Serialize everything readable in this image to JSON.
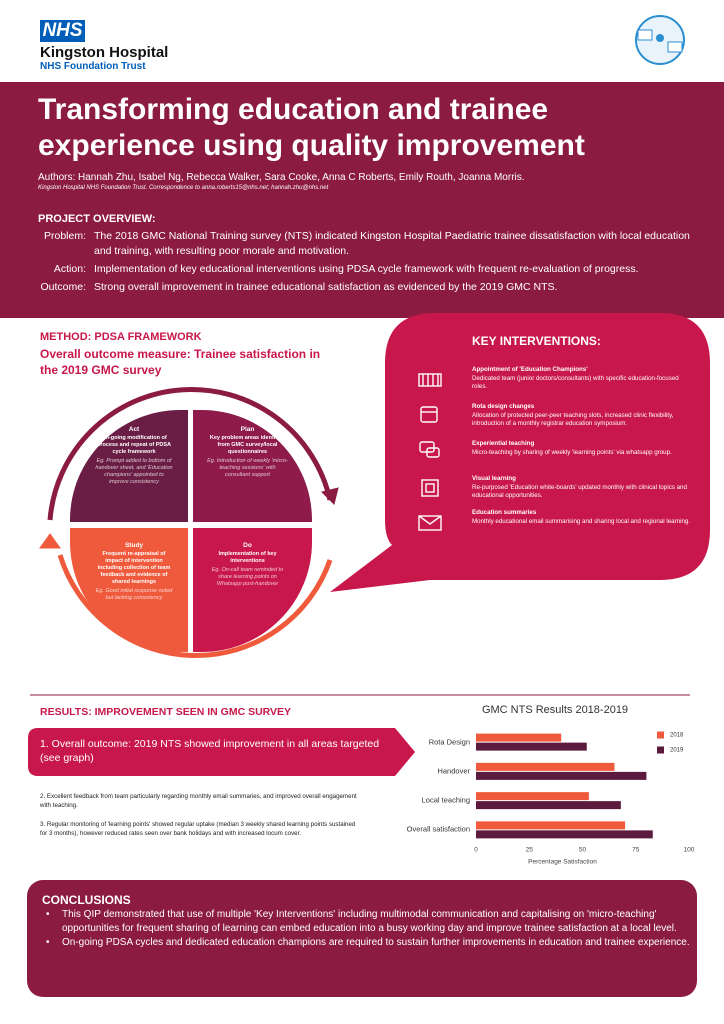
{
  "header": {
    "logo": "NHS",
    "org": "Kingston Hospital",
    "trust": "NHS Foundation Trust"
  },
  "title": "Transforming education and trainee experience using quality improvement",
  "authors": "Authors: Hannah Zhu, Isabel Ng, Rebecca Walker, Sara Cooke, Anna C Roberts, Emily Routh, Joanna Morris.",
  "affiliation": "Kingston Hospital NHS Foundation Trust. Correspondence to anna.roberts15@nhs.net; hannah.zhu@nhs.net",
  "overview": {
    "heading": "PROJECT OVERVIEW:",
    "items": [
      {
        "label": "Problem:",
        "text": "The 2018 GMC National Training survey (NTS) indicated Kingston Hospital Paediatric trainee dissatisfaction with local education and training, with resulting poor morale and motivation."
      },
      {
        "label": "Action:",
        "text": "Implementation of key educational interventions using PDSA cycle framework with frequent re-evaluation of progress."
      },
      {
        "label": "Outcome:",
        "text": "Strong overall improvement in trainee educational satisfaction as evidenced by the 2019 GMC NTS."
      }
    ]
  },
  "method": {
    "heading": "METHOD: PDSA FRAMEWORK",
    "subheading": "Overall outcome measure: Trainee satisfaction in the 2019 GMC survey",
    "quadrants": [
      {
        "title": "Act",
        "text": "On-going modification of process and repeat of PDSA cycle framework",
        "example": "Eg. Prompt added to bottom of handover sheet, and 'Education champions' appointed to improve consistency"
      },
      {
        "title": "Plan",
        "text": "Key problem areas identified from GMC survey/local questionnaires",
        "example": "Eg. Introduction of weekly 'micro-teaching sessions' with consultant support"
      },
      {
        "title": "Study",
        "text": "Frequent re-appraisal of impact of intervention including collection of team feedback and evidence of shared learnings",
        "example": "Eg. Good initial response noted but lacking consistency"
      },
      {
        "title": "Do",
        "text": "Implementation of key interventions",
        "example": "Eg. On-call team reminded to share learning points on Whatsapp post-handover"
      }
    ]
  },
  "interventions": {
    "heading": "KEY INTERVENTIONS:",
    "items": [
      {
        "title": "Appointment of 'Education Champions'",
        "text": "Dedicated team (junior doctors/consultants) with specific education-focused roles."
      },
      {
        "title": "Rota design changes",
        "text": "Allocation of protected peer-peer teaching slots, increased clinic flexibility, introduction of a monthly registrar education symposium."
      },
      {
        "title": "Experiential teaching",
        "text": "Micro-teaching by sharing of weekly 'learning points' via whatsapp group."
      },
      {
        "title": "Visual learning",
        "text": "Re-purposed 'Education white-boards' updated monthly with clinical topics and educational opportunities."
      },
      {
        "title": "Education summaries",
        "text": "Monthly educational email summarising and sharing local and regional learning."
      }
    ]
  },
  "results": {
    "heading": "RESULTS: IMPROVEMENT SEEN IN GMC SURVEY",
    "outcome": "1. Overall outcome: 2019 NTS showed improvement in all areas targeted (see graph)",
    "points": [
      "2. Excellent feedback from team particularly regarding monthly email summaries, and improved overall engagement with teaching.",
      "3. Regular monitoring of 'learning points' showed regular uptake (median 3 weekly shared learning points sustained for 3 months), however reduced rates seen over bank holidays and with increased locum cover."
    ]
  },
  "chart_data": {
    "type": "bar",
    "title": "GMC NTS Results 2018-2019",
    "categories": [
      "Rota Design",
      "Handover",
      "Local teaching",
      "Overall satisfaction"
    ],
    "series": [
      {
        "name": "2018",
        "color": "#f05a3c",
        "values": [
          40,
          65,
          53,
          70
        ]
      },
      {
        "name": "2019",
        "color": "#5c1a3e",
        "values": [
          52,
          80,
          68,
          83
        ]
      }
    ],
    "xlim": [
      0,
      100
    ],
    "xticks": [
      0,
      25,
      50,
      75,
      100
    ],
    "xlabel": "Percentage Satisfaction",
    "legend": "right"
  },
  "conclusions": {
    "heading": "CONCLUSIONS",
    "points": [
      "This QIP demonstrated that use of multiple 'Key Interventions' including multimodal communication and capitalising on 'micro-teaching' opportunities for frequent sharing of learning can embed education into a busy working day and improve trainee satisfaction at a local level.",
      "On-going PDSA cycles and dedicated education champions are required to sustain further improvements in education and trainee experience."
    ]
  }
}
